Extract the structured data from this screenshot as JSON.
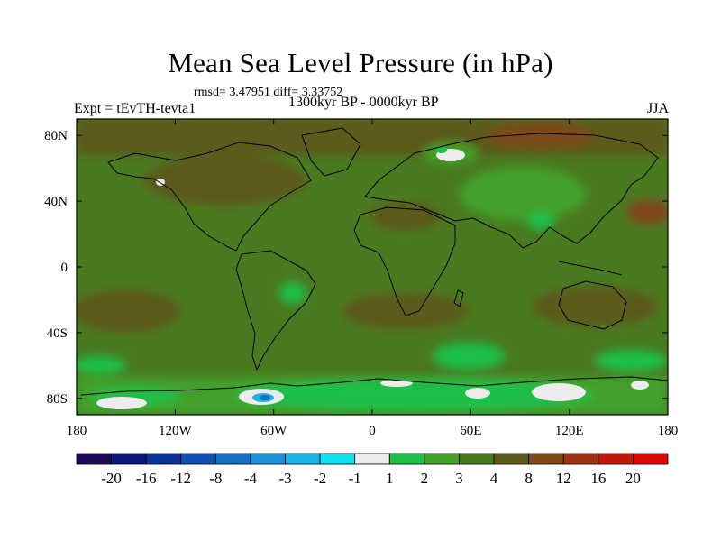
{
  "title": "Mean Sea Level Pressure (in hPa)",
  "stats_text": "rmsd= 3.47951 diff= 3.33752",
  "period": "1300kyr BP - 0000kyr BP",
  "experiment": "Expt = tEvTH-tevta1",
  "season": "JJA",
  "chart_data": {
    "type": "heatmap",
    "title": "Mean Sea Level Pressure (in hPa)",
    "lon_range": [
      -180,
      180
    ],
    "lat_range": [
      -90,
      90
    ],
    "x_ticks": [
      {
        "value": -180,
        "label": "180"
      },
      {
        "value": -120,
        "label": "120W"
      },
      {
        "value": -60,
        "label": "60W"
      },
      {
        "value": 0,
        "label": "0"
      },
      {
        "value": 60,
        "label": "60E"
      },
      {
        "value": 120,
        "label": "120E"
      },
      {
        "value": 180,
        "label": "180"
      }
    ],
    "y_ticks": [
      {
        "value": 80,
        "label": "80N"
      },
      {
        "value": 40,
        "label": "40N"
      },
      {
        "value": 0,
        "label": "0"
      },
      {
        "value": -40,
        "label": "40S"
      },
      {
        "value": -80,
        "label": "80S"
      }
    ],
    "colorbar": {
      "levels": [
        "-20",
        "-16",
        "-12",
        "-8",
        "-4",
        "-3",
        "-2",
        "-1",
        "1",
        "2",
        "3",
        "4",
        "8",
        "12",
        "16",
        "20"
      ],
      "colors": [
        "#1c0a55",
        "#0a1878",
        "#0c3296",
        "#1150b0",
        "#1670c6",
        "#1c92d6",
        "#19b4e4",
        "#12e0ec",
        "#ececec",
        "#1ebf4a",
        "#43a02c",
        "#4a7a20",
        "#5c5a1a",
        "#7e4a1a",
        "#9c3212",
        "#bc1a0a",
        "#dc0808"
      ]
    }
  }
}
